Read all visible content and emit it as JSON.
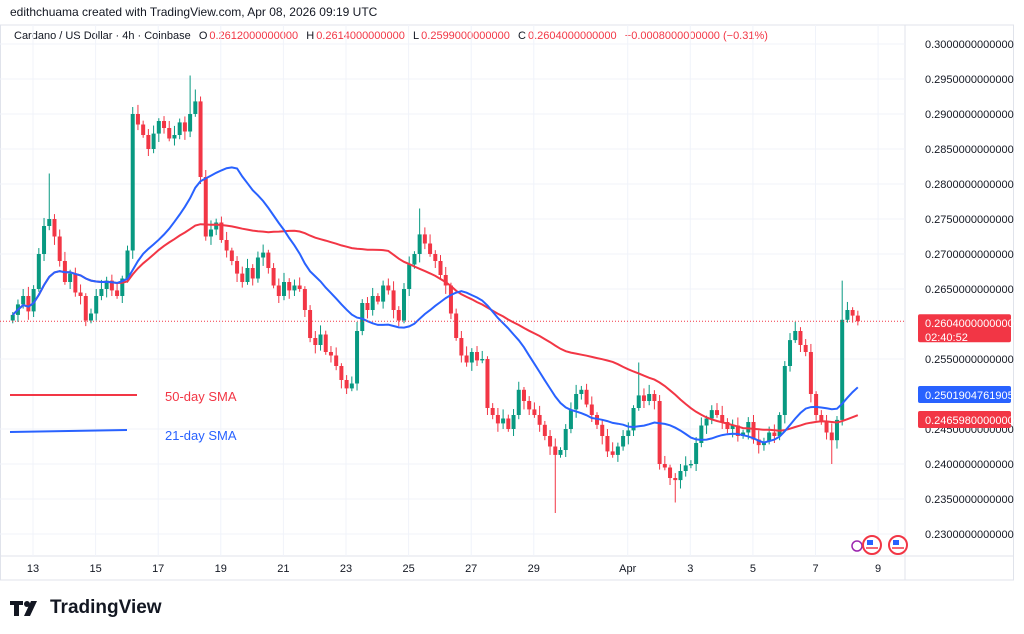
{
  "attribution": "edithchuama created with TradingView.com, Apr 08, 2026 09:19 UTC",
  "legend": {
    "symbol": "Cardano / US Dollar · 4h · Coinbase",
    "o_label": "O",
    "o": "0.2612000000000",
    "h_label": "H",
    "h": "0.2614000000000",
    "l_label": "L",
    "l": "0.2599000000000",
    "c_label": "C",
    "c": "0.2604000000000",
    "change": "−0.0008000000000 (−0.31%)"
  },
  "logo": "TradingView",
  "colors": {
    "up": "#089981",
    "down": "#f23645",
    "sma50": "#f23645",
    "sma21": "#2962ff",
    "grid": "#f0f3fa"
  },
  "chart_data": {
    "type": "candlestick",
    "interval": "4h",
    "last_candle": "2026-04-08 08:00",
    "ylim": [
      0.227,
      0.3035
    ],
    "y_ticks": [
      "0.3000000000000",
      "0.2950000000000",
      "0.2900000000000",
      "0.2850000000000",
      "0.2800000000000",
      "0.2750000000000",
      "0.2700000000000",
      "0.2650000000000",
      "0.2550000000000",
      "0.2450000000000",
      "0.2400000000000",
      "0.2350000000000",
      "0.2300000000000"
    ],
    "x_ticks": [
      "13",
      "15",
      "17",
      "19",
      "21",
      "23",
      "25",
      "27",
      "29",
      "Apr",
      "3",
      "5",
      "7",
      "9"
    ],
    "x_tick_dates": [
      "2026-03-13",
      "2026-03-15",
      "2026-03-17",
      "2026-03-19",
      "2026-03-21",
      "2026-03-23",
      "2026-03-25",
      "2026-03-27",
      "2026-03-29",
      "2026-04-01",
      "2026-04-03",
      "2026-04-05",
      "2026-04-07",
      "2026-04-09"
    ],
    "closes": [
      0.2613,
      0.2628,
      0.264,
      0.2618,
      0.265,
      0.27,
      0.274,
      0.275,
      0.2725,
      0.269,
      0.266,
      0.2672,
      0.2645,
      0.264,
      0.2605,
      0.2615,
      0.264,
      0.265,
      0.2662,
      0.2648,
      0.264,
      0.2665,
      0.2705,
      0.29,
      0.2885,
      0.287,
      0.285,
      0.2872,
      0.289,
      0.288,
      0.2865,
      0.287,
      0.2888,
      0.2875,
      0.29,
      0.2918,
      0.281,
      0.2725,
      0.2735,
      0.2745,
      0.272,
      0.2705,
      0.269,
      0.2672,
      0.266,
      0.268,
      0.2665,
      0.2695,
      0.2702,
      0.268,
      0.2655,
      0.264,
      0.266,
      0.2648,
      0.2655,
      0.265,
      0.262,
      0.258,
      0.257,
      0.2585,
      0.256,
      0.2555,
      0.254,
      0.252,
      0.2508,
      0.2515,
      0.259,
      0.263,
      0.262,
      0.264,
      0.2632,
      0.2655,
      0.2648,
      0.262,
      0.2605,
      0.265,
      0.2685,
      0.27,
      0.2728,
      0.2715,
      0.27,
      0.269,
      0.267,
      0.2655,
      0.2615,
      0.258,
      0.2555,
      0.2545,
      0.256,
      0.2548,
      0.255,
      0.248,
      0.247,
      0.2458,
      0.2465,
      0.245,
      0.247,
      0.2506,
      0.249,
      0.2478,
      0.247,
      0.2456,
      0.244,
      0.2425,
      0.2413,
      0.242,
      0.245,
      0.2478,
      0.25,
      0.2506,
      0.2485,
      0.247,
      0.2456,
      0.244,
      0.2418,
      0.2413,
      0.2425,
      0.244,
      0.2448,
      0.248,
      0.2498,
      0.249,
      0.25,
      0.249,
      0.24,
      0.2395,
      0.238,
      0.2377,
      0.239,
      0.2398,
      0.24,
      0.243,
      0.2455,
      0.2465,
      0.2477,
      0.247,
      0.246,
      0.245,
      0.2455,
      0.244,
      0.2445,
      0.246,
      0.2435,
      0.2427,
      0.2432,
      0.2445,
      0.244,
      0.247,
      0.254,
      0.2577,
      0.259,
      0.257,
      0.256,
      0.25,
      0.247,
      0.246,
      0.2445,
      0.2434,
      0.2463,
      0.2606,
      0.262,
      0.2612,
      0.2604
    ],
    "first_open": 0.2605,
    "notable_highs": {
      "7": 0.2815,
      "34": 0.2955,
      "35": 0.2935,
      "78": 0.2765,
      "120": 0.2545,
      "159": 0.2662
    },
    "notable_lows": {
      "104": 0.233,
      "127": 0.2345,
      "157": 0.24
    },
    "series": [
      {
        "name": "50-day SMA",
        "window": 50,
        "last_value": "0.2465980000000"
      },
      {
        "name": "21-day SMA",
        "window": 21,
        "last_value": "0.2501904761905"
      }
    ],
    "last_price": "0.2604000000000",
    "countdown": "02:40:52",
    "grid": true
  }
}
